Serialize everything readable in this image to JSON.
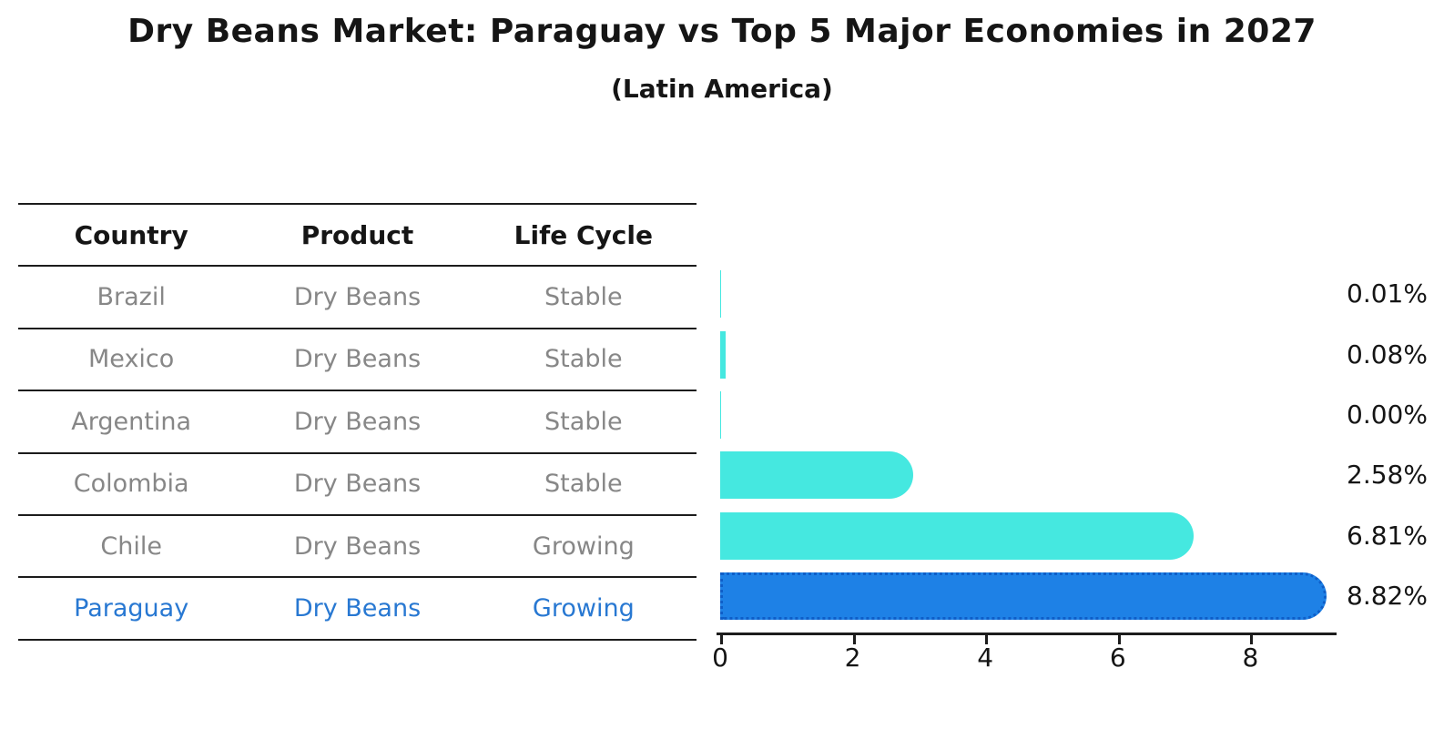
{
  "title": "Dry Beans Market: Paraguay vs Top 5 Major Economies in 2027",
  "subtitle": "(Latin America)",
  "table": {
    "headers": [
      "Country",
      "Product",
      "Life Cycle"
    ],
    "rows": [
      {
        "country": "Brazil",
        "product": "Dry Beans",
        "life_cycle": "Stable",
        "highlight": false
      },
      {
        "country": "Mexico",
        "product": "Dry Beans",
        "life_cycle": "Stable",
        "highlight": false
      },
      {
        "country": "Argentina",
        "product": "Dry Beans",
        "life_cycle": "Stable",
        "highlight": false
      },
      {
        "country": "Colombia",
        "product": "Dry Beans",
        "life_cycle": "Stable",
        "highlight": false
      },
      {
        "country": "Chile",
        "product": "Dry Beans",
        "life_cycle": "Growing",
        "highlight": false
      },
      {
        "country": "Paraguay",
        "product": "Dry Beans",
        "life_cycle": "Growing",
        "highlight": true
      }
    ]
  },
  "chart_data": {
    "type": "bar",
    "orientation": "horizontal",
    "title": "Dry Beans Market: Paraguay vs Top 5 Major Economies in 2027",
    "subtitle": "(Latin America)",
    "categories": [
      "Brazil",
      "Mexico",
      "Argentina",
      "Colombia",
      "Chile",
      "Paraguay"
    ],
    "values": [
      0.01,
      0.08,
      0.0,
      2.58,
      6.81,
      8.82
    ],
    "value_labels": [
      "0.01%",
      "0.08%",
      "0.00%",
      "2.58%",
      "6.81%",
      "8.82%"
    ],
    "highlight_index": 5,
    "x_ticks": [
      0,
      2,
      4,
      6,
      8
    ],
    "xlim": [
      0,
      9.3
    ],
    "grid": false,
    "legend": "none",
    "colors": {
      "bar": "#45e8e0",
      "highlight_bar": "#1e81e6",
      "highlight_bar_border": "#0e5ec8",
      "highlight_text": "#2878d2",
      "row_text": "#878787",
      "axis": "#1c1c1c"
    }
  }
}
